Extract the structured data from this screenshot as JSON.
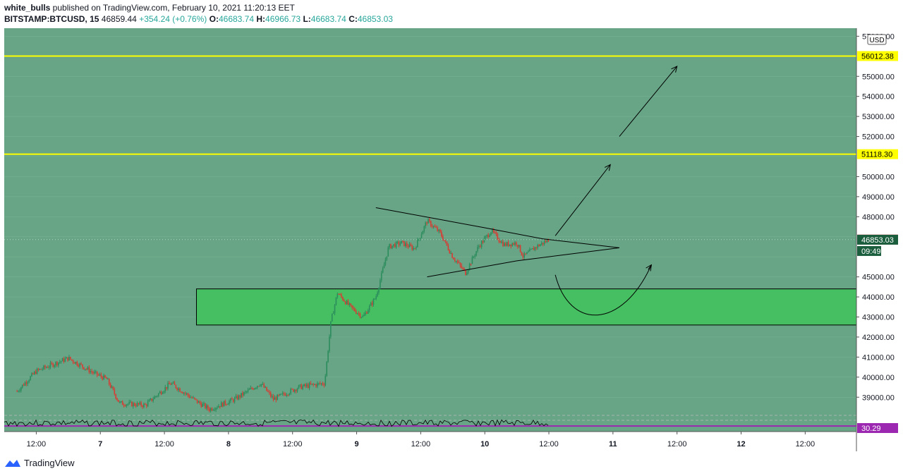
{
  "header": {
    "author": "white_bulls",
    "published_text": " published on TradingView.com, February 10, 2021 11:20:13 EET",
    "symbol": "BITSTAMP:BTCUSD, 15",
    "last_price": "46859.44",
    "change": "+354.24 (+0.76%)",
    "o_label": "O:",
    "o_value": "46683.74",
    "h_label": "H:",
    "h_value": "46966.73",
    "l_label": "L:",
    "l_value": "46683.74",
    "c_label": "C:",
    "c_value": "46853.03"
  },
  "footer": {
    "brand": "TradingView"
  },
  "colors": {
    "background": "#67a586",
    "up": "#2b8c5c",
    "down": "#d93a32",
    "level": "#ffff00",
    "zone": "#46bf62",
    "osc_line": "#9c27b0",
    "price_tag": "#c62828",
    "close_tag": "#1b5e3d"
  },
  "chart_data": {
    "type": "candlestick",
    "currency": "USD",
    "y_range": [
      38200,
      57400
    ],
    "y_ticks": [
      "57000.00",
      "55000.00",
      "54000.00",
      "53000.00",
      "52000.00",
      "50000.00",
      "49000.00",
      "48000.00",
      "45000.00",
      "44000.00",
      "43000.00",
      "42000.00",
      "41000.00",
      "40000.00",
      "39000.00"
    ],
    "x_ticks": [
      "12:00",
      "7",
      "12:00",
      "8",
      "12:00",
      "9",
      "12:00",
      "10",
      "12:00",
      "11",
      "12:00",
      "12",
      "12:00"
    ],
    "x_range_days": [
      6.25,
      12.9
    ],
    "price_path": [
      [
        6.35,
        39300
      ],
      [
        6.5,
        40300
      ],
      [
        6.75,
        40950
      ],
      [
        6.95,
        40200
      ],
      [
        7.05,
        39900
      ],
      [
        7.15,
        38700
      ],
      [
        7.35,
        38600
      ],
      [
        7.55,
        39700
      ],
      [
        7.75,
        38800
      ],
      [
        7.85,
        38400
      ],
      [
        8.05,
        38900
      ],
      [
        8.25,
        39700
      ],
      [
        8.35,
        38900
      ],
      [
        8.55,
        39500
      ],
      [
        8.75,
        39700
      ],
      [
        8.8,
        42800
      ],
      [
        8.85,
        44200
      ],
      [
        8.95,
        43500
      ],
      [
        9.05,
        43000
      ],
      [
        9.15,
        44000
      ],
      [
        9.25,
        46500
      ],
      [
        9.35,
        46700
      ],
      [
        9.45,
        46400
      ],
      [
        9.55,
        47800
      ],
      [
        9.65,
        47200
      ],
      [
        9.75,
        46000
      ],
      [
        9.85,
        45200
      ],
      [
        9.95,
        46500
      ],
      [
        10.05,
        47300
      ],
      [
        10.15,
        46600
      ],
      [
        10.25,
        46700
      ],
      [
        10.3,
        46000
      ],
      [
        10.4,
        46500
      ],
      [
        10.5,
        46859
      ]
    ],
    "horizontal_levels": [
      {
        "label": "56012.38",
        "value": 56012.38
      },
      {
        "label": "51118.30",
        "value": 51118.3
      }
    ],
    "last_price": {
      "label": "46859.44",
      "value": 46859.44
    },
    "close_price": {
      "label": "46853.03",
      "value": 46853.03
    },
    "countdown": "09:49",
    "demand_zone": {
      "from": 42600,
      "to": 44400,
      "start_day": 7.75
    },
    "triangle": {
      "upper": [
        [
          9.15,
          48450
        ],
        [
          10.0,
          47450
        ],
        [
          10.45,
          46900
        ],
        [
          11.05,
          46450
        ]
      ],
      "lower": [
        [
          9.55,
          45000
        ],
        [
          10.25,
          45800
        ],
        [
          11.05,
          46450
        ]
      ]
    },
    "projections": [
      {
        "from": [
          10.55,
          47050
        ],
        "to": [
          10.98,
          50600
        ]
      },
      {
        "from": [
          11.05,
          52000
        ],
        "to": [
          11.5,
          55500
        ]
      }
    ],
    "curve": {
      "start": [
        10.55,
        45100
      ],
      "bottom": [
        10.85,
        42700
      ],
      "end": [
        11.3,
        45600
      ]
    },
    "oscillator": {
      "value_label": "30.29",
      "value": 30.29
    }
  }
}
